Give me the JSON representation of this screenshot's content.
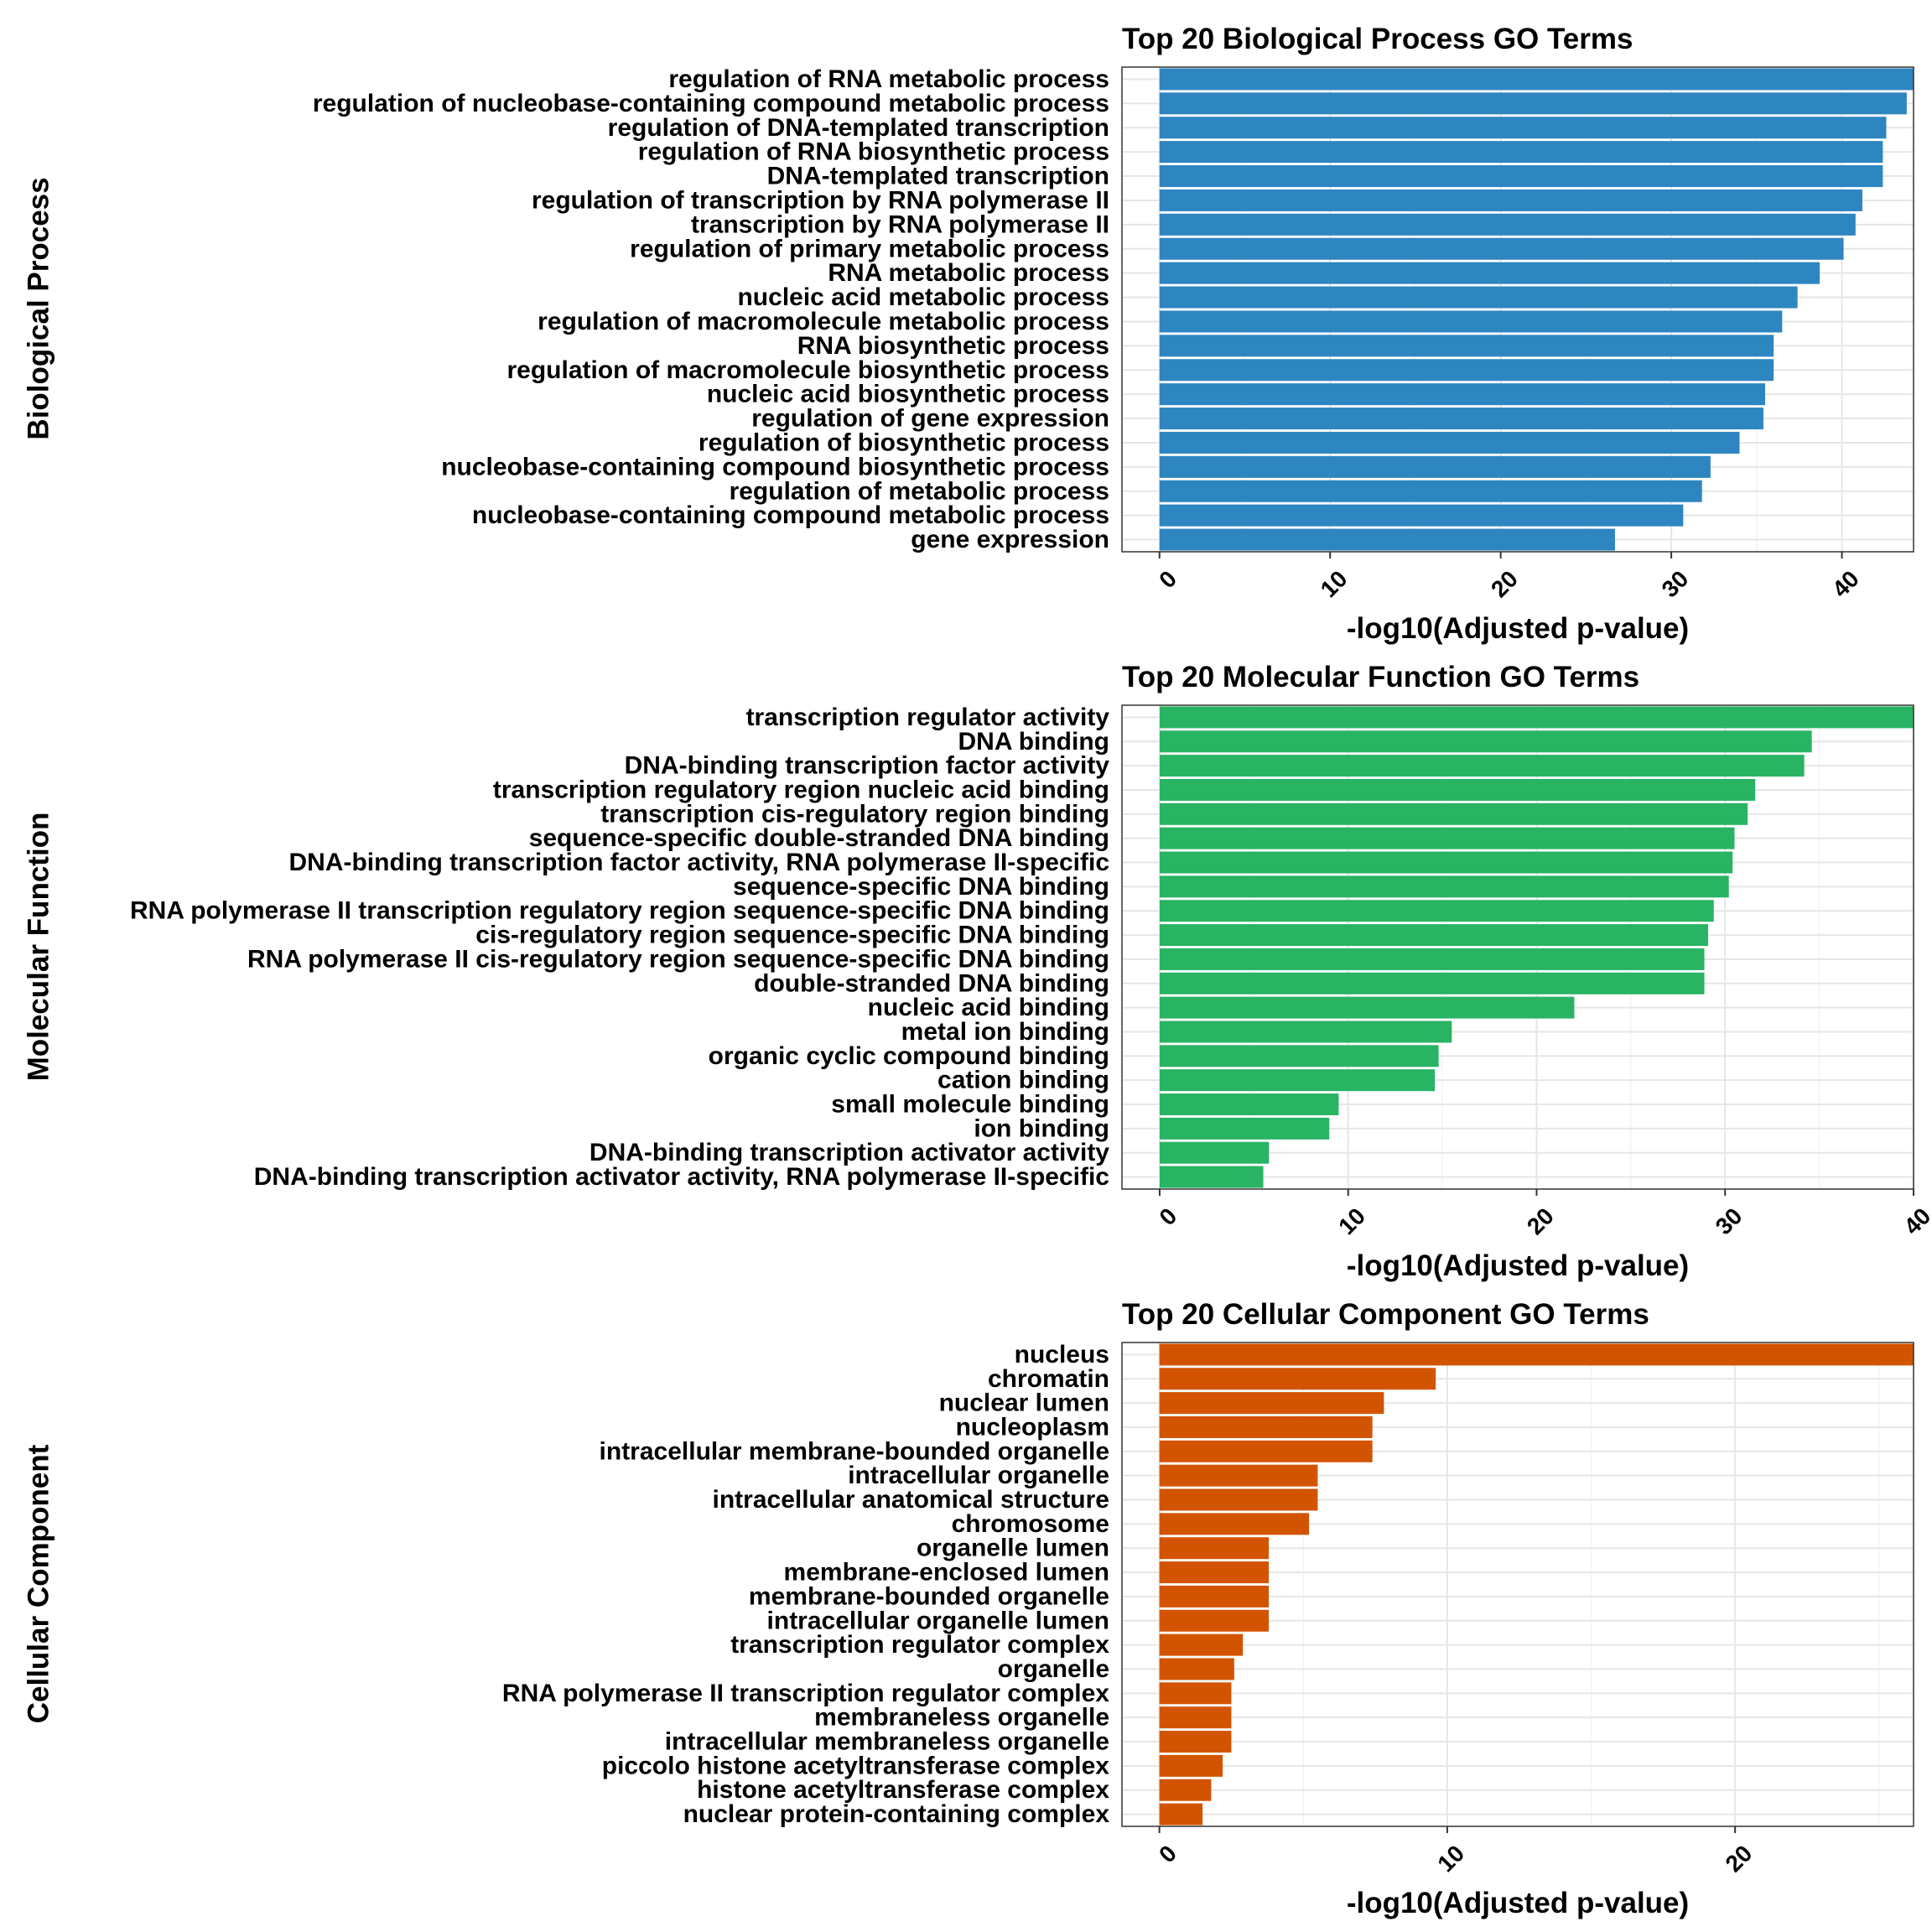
{
  "chart_data": [
    {
      "type": "bar",
      "orientation": "horizontal",
      "title": "Top 20 Biological Process GO Terms",
      "ylabel": "Biological Process",
      "xlabel": "-log10(Adjusted p-value)",
      "color": "#2E86C1",
      "xticks": [
        0,
        10,
        20,
        30,
        40
      ],
      "xlim": [
        -2.2,
        44.2
      ],
      "grid": true,
      "categories": [
        "regulation of RNA metabolic process",
        "regulation of nucleobase-containing compound metabolic process",
        "regulation of DNA-templated transcription",
        "regulation of RNA biosynthetic process",
        "DNA-templated transcription",
        "regulation of transcription by RNA polymerase II",
        "transcription by RNA polymerase II",
        "regulation of primary metabolic process",
        "RNA metabolic process",
        "nucleic acid metabolic process",
        "regulation of macromolecule metabolic process",
        "RNA biosynthetic process",
        "regulation of macromolecule biosynthetic process",
        "nucleic acid biosynthetic process",
        "regulation of gene expression",
        "regulation of biosynthetic process",
        "nucleobase-containing compound biosynthetic process",
        "regulation of metabolic process",
        "nucleobase-containing compound metabolic process",
        "gene expression"
      ],
      "values": [
        44.2,
        43.8,
        42.6,
        42.4,
        42.4,
        41.2,
        40.8,
        40.1,
        38.7,
        37.4,
        36.5,
        36.0,
        36.0,
        35.5,
        35.4,
        34.0,
        32.3,
        31.8,
        30.7,
        26.7
      ]
    },
    {
      "type": "bar",
      "orientation": "horizontal",
      "title": "Top 20 Molecular Function GO Terms",
      "ylabel": "Molecular Function",
      "xlabel": "-log10(Adjusted p-value)",
      "color": "#28B463",
      "xticks": [
        0,
        10,
        20,
        30,
        40
      ],
      "xlim": [
        -2.0,
        40.0
      ],
      "grid": true,
      "categories": [
        "transcription regulator activity",
        "DNA binding",
        "DNA-binding transcription factor activity",
        "transcription regulatory region nucleic acid binding",
        "transcription cis-regulatory region binding",
        "sequence-specific double-stranded DNA binding",
        "DNA-binding transcription factor activity, RNA polymerase II-specific",
        "sequence-specific DNA binding",
        "RNA polymerase II transcription regulatory region sequence-specific DNA binding",
        "cis-regulatory region sequence-specific DNA binding",
        "RNA polymerase II cis-regulatory region sequence-specific DNA binding",
        "double-stranded DNA binding",
        "nucleic acid binding",
        "metal ion binding",
        "organic cyclic compound binding",
        "cation binding",
        "small molecule binding",
        "ion binding",
        "DNA-binding transcription activator activity",
        "DNA-binding transcription activator activity, RNA polymerase II-specific"
      ],
      "values": [
        40.0,
        34.6,
        34.2,
        31.6,
        31.2,
        30.5,
        30.4,
        30.2,
        29.4,
        29.1,
        28.9,
        28.9,
        22.0,
        15.5,
        14.8,
        14.6,
        9.5,
        9.0,
        5.8,
        5.5
      ]
    },
    {
      "type": "bar",
      "orientation": "horizontal",
      "title": "Top 20 Cellular Component GO Terms",
      "ylabel": "Cellular Component",
      "xlabel": "-log10(Adjusted p-value)",
      "color": "#D35400",
      "xticks": [
        0,
        10,
        20
      ],
      "xlim": [
        -1.3,
        26.2
      ],
      "grid": true,
      "categories": [
        "nucleus",
        "chromatin",
        "nuclear lumen",
        "nucleoplasm",
        "intracellular membrane-bounded organelle",
        "intracellular organelle",
        "intracellular anatomical structure",
        "chromosome",
        "organelle lumen",
        "membrane-enclosed lumen",
        "membrane-bounded organelle",
        "intracellular organelle lumen",
        "transcription regulator complex",
        "organelle",
        "RNA polymerase II transcription regulator complex",
        "membraneless organelle",
        "intracellular membraneless organelle",
        "piccolo histone acetyltransferase complex",
        "histone acetyltransferase complex",
        "nuclear protein-containing complex"
      ],
      "values": [
        26.2,
        9.6,
        7.8,
        7.4,
        7.4,
        5.5,
        5.5,
        5.2,
        3.8,
        3.8,
        3.8,
        3.8,
        2.9,
        2.6,
        2.5,
        2.5,
        2.5,
        2.2,
        1.8,
        1.5
      ]
    }
  ]
}
